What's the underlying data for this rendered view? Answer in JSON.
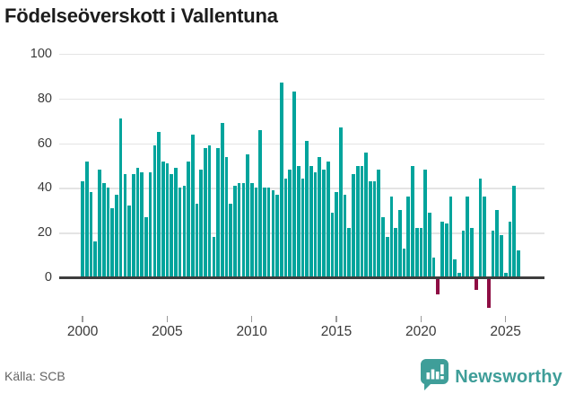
{
  "title": "Födelseöverskott i Vallentuna",
  "source": {
    "text": "Källa: SCB"
  },
  "logo": {
    "text": "Newsworthy",
    "icon": "newsworthy-speech-bubble-barchart"
  },
  "colors": {
    "bar_positive": "#00a49c",
    "bar_negative": "#8e0e44",
    "gridline": "#e4e4e4",
    "zero_axis": "#3d3d3d",
    "tick": "#9a9a9a",
    "title_text": "#1c1c1c",
    "axis_text": "#3a3a3a",
    "source_text": "#646464",
    "logo_teal": "#3f9e99"
  },
  "chart_data": {
    "type": "bar",
    "title": "Födelseöverskott i Vallentuna",
    "xlabel": "",
    "ylabel": "",
    "ylim": [
      -16,
      100
    ],
    "grid": true,
    "y_ticks": [
      0,
      20,
      40,
      60,
      80,
      100
    ],
    "x_ticks": [
      2000,
      2005,
      2010,
      2015,
      2020,
      2025
    ],
    "frequency": "quarterly",
    "categories": [
      "2000K1",
      "2000K2",
      "2000K3",
      "2000K4",
      "2001K1",
      "2001K2",
      "2001K3",
      "2001K4",
      "2002K1",
      "2002K2",
      "2002K3",
      "2002K4",
      "2003K1",
      "2003K2",
      "2003K3",
      "2003K4",
      "2004K1",
      "2004K2",
      "2004K3",
      "2004K4",
      "2005K1",
      "2005K2",
      "2005K3",
      "2005K4",
      "2006K1",
      "2006K2",
      "2006K3",
      "2006K4",
      "2007K1",
      "2007K2",
      "2007K3",
      "2007K4",
      "2008K1",
      "2008K2",
      "2008K3",
      "2008K4",
      "2009K1",
      "2009K2",
      "2009K3",
      "2009K4",
      "2010K1",
      "2010K2",
      "2010K3",
      "2010K4",
      "2011K1",
      "2011K2",
      "2011K3",
      "2011K4",
      "2012K1",
      "2012K2",
      "2012K3",
      "2012K4",
      "2013K1",
      "2013K2",
      "2013K3",
      "2013K4",
      "2014K1",
      "2014K2",
      "2014K3",
      "2014K4",
      "2015K1",
      "2015K2",
      "2015K3",
      "2015K4",
      "2016K1",
      "2016K2",
      "2016K3",
      "2016K4",
      "2017K1",
      "2017K2",
      "2017K3",
      "2017K4",
      "2018K1",
      "2018K2",
      "2018K3",
      "2018K4",
      "2019K1",
      "2019K2",
      "2019K3",
      "2019K4",
      "2020K1",
      "2020K2",
      "2020K3",
      "2020K4",
      "2021K1",
      "2021K2",
      "2021K3",
      "2021K4",
      "2022K1",
      "2022K2",
      "2022K3",
      "2022K4",
      "2023K1",
      "2023K2",
      "2023K3",
      "2023K4",
      "2024K1",
      "2024K2",
      "2024K3",
      "2024K4",
      "2025K1",
      "2025K2",
      "2025K3",
      "2025K4"
    ],
    "values": [
      43,
      52,
      38,
      16,
      48,
      42,
      40,
      31,
      37,
      71,
      46,
      32,
      46,
      49,
      47,
      27,
      47,
      59,
      65,
      52,
      51,
      46,
      49,
      40,
      41,
      52,
      64,
      33,
      48,
      58,
      59,
      18,
      58,
      69,
      54,
      33,
      41,
      42,
      42,
      55,
      42,
      40,
      66,
      40,
      40,
      39,
      37,
      87,
      44,
      48,
      83,
      50,
      44,
      61,
      50,
      47,
      54,
      48,
      52,
      29,
      38,
      67,
      37,
      22,
      46,
      50,
      50,
      56,
      43,
      43,
      48,
      27,
      18,
      36,
      22,
      30,
      13,
      36,
      50,
      22,
      22,
      48,
      29,
      9,
      -7,
      25,
      24,
      36,
      8,
      2,
      21,
      36,
      22,
      -5,
      44,
      36,
      -13,
      21,
      30,
      19,
      2,
      25,
      41,
      12
    ]
  }
}
